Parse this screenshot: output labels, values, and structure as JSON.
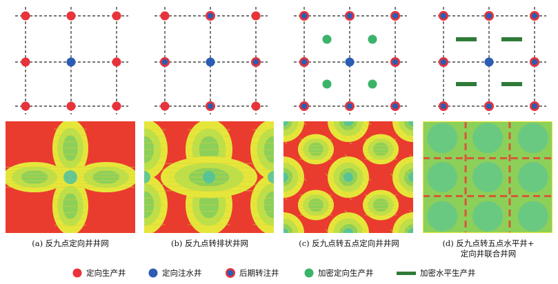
{
  "colors": {
    "producer": "#e8333a",
    "injector": "#2a5db3",
    "infill": "#3bb36a",
    "horizontal": "#2f7a39",
    "bg_red": "#ea3b2f",
    "yellow": "#e6e63a",
    "green": "#8cd05a",
    "teal": "#4fc2a0"
  },
  "panels": [
    {
      "id": "a",
      "caption": "(a) 反九点定向井井网",
      "layout": "inverted-nine-spot",
      "map_style": "flower"
    },
    {
      "id": "b",
      "caption": "(b) 反九点转排状井网",
      "layout": "line-drive",
      "map_style": "rows"
    },
    {
      "id": "c",
      "caption": "(c) 反九点转五点定向井井网",
      "layout": "five-spot-infill",
      "map_style": "mesh"
    },
    {
      "id": "d",
      "caption": "(d) 反九点转五点水平井+\n定向井联合井网",
      "layout": "five-spot-horizontal",
      "map_style": "full"
    }
  ],
  "legend": [
    {
      "symbol": "producer",
      "label": "定向生产井"
    },
    {
      "symbol": "injector",
      "label": "定向注水井"
    },
    {
      "symbol": "converted",
      "label": "后期转注井"
    },
    {
      "symbol": "infill",
      "label": "加密定向生产井"
    },
    {
      "symbol": "horizontal",
      "label": "加密水平生产井"
    }
  ]
}
